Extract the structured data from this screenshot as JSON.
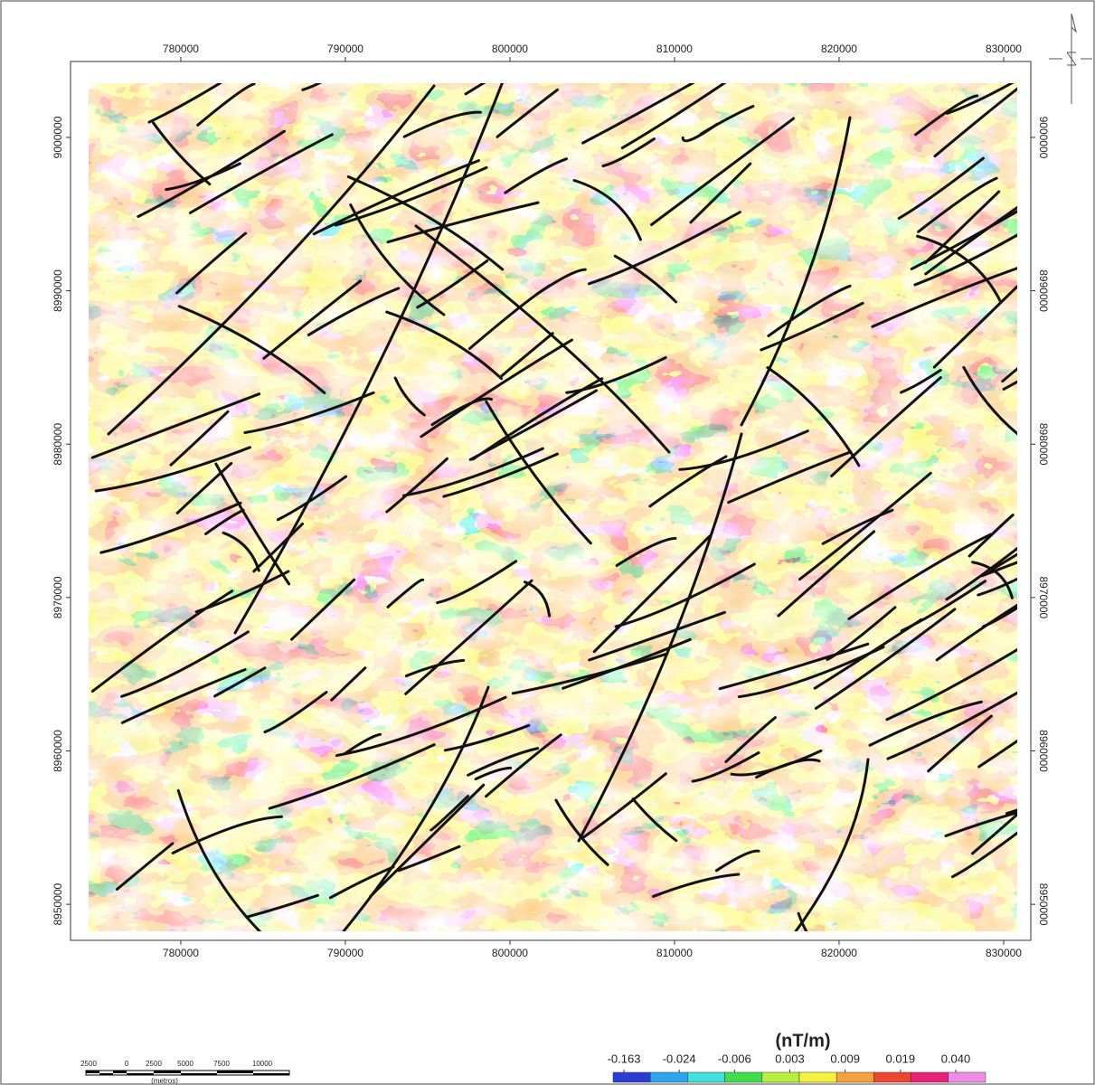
{
  "map": {
    "x_axis": {
      "xlim": [
        773300,
        831650
      ],
      "ticks": [
        780000,
        790000,
        800000,
        810000,
        820000,
        830000
      ]
    },
    "y_axis": {
      "ylim": [
        8947650,
        9004950
      ],
      "ticks": [
        9000000,
        8990000,
        8980000,
        8970000,
        8960000,
        8950000
      ]
    },
    "scale_bar": {
      "labels": [
        "2500",
        "0",
        "2500",
        "5000",
        "7500",
        "10000"
      ],
      "unit": "(metros)"
    },
    "legend": {
      "unit": "(nT/m)",
      "ticks": [
        -0.163,
        -0.024,
        -0.006,
        0.003,
        0.009,
        0.019,
        {
          "value": 0.04,
          "label": "0.040"
        }
      ],
      "colors": [
        "#2b3bd6",
        "#2aa6f0",
        "#3fe0e0",
        "#3ee04a",
        "#b6f03c",
        "#f6f23a",
        "#f7a13a",
        "#f0452e",
        "#e8207a",
        "#f08ce8"
      ]
    }
  }
}
